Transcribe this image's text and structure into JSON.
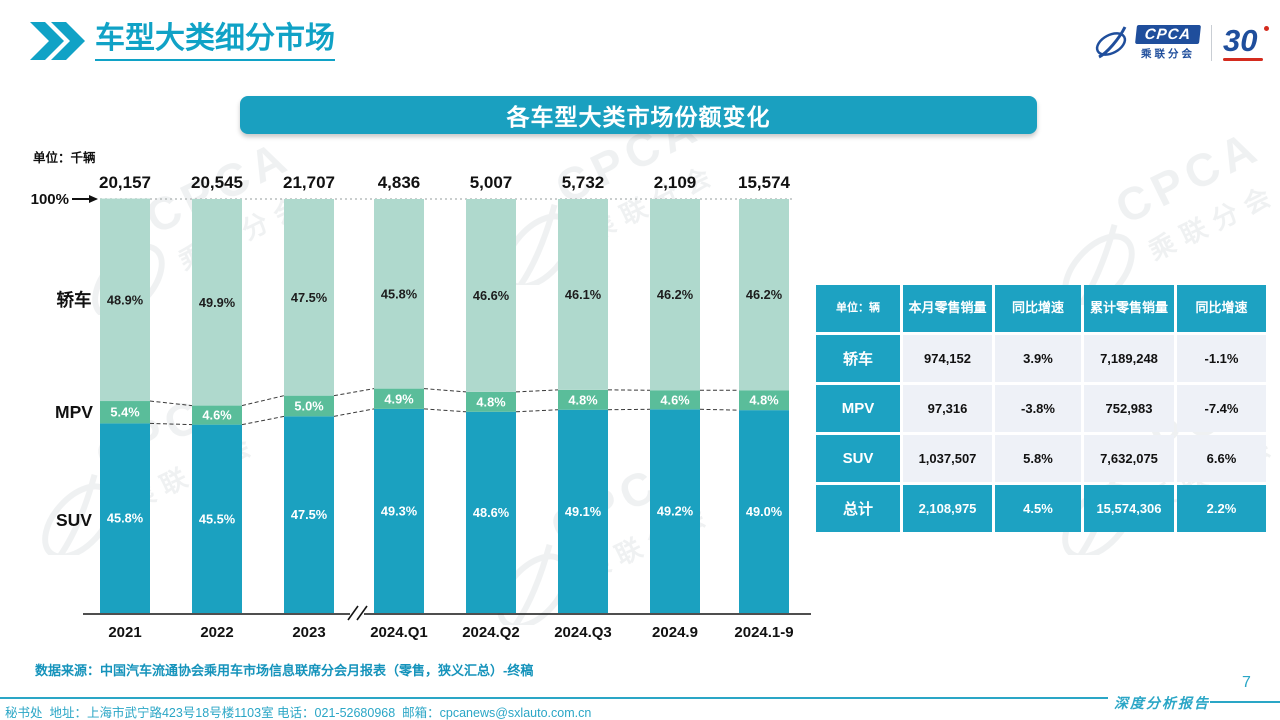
{
  "header": {
    "title": "车型大类细分市场"
  },
  "logo": {
    "name": "CPCA",
    "subtitle": "乘联分会",
    "anniversary": "30"
  },
  "banner": {
    "title": "各车型大类市场份额变化"
  },
  "chart_data": {
    "type": "bar",
    "stacked": true,
    "unit_label": "单位：千辆",
    "top_axis_label": "100%",
    "ylim": [
      0,
      100
    ],
    "grid": false,
    "legend_position": "left",
    "categories": [
      "2021",
      "2022",
      "2023",
      "2024.Q1",
      "2024.Q2",
      "2024.Q3",
      "2024.9",
      "2024.1-9"
    ],
    "totals": [
      "20,157",
      "20,545",
      "21,707",
      "4,836",
      "5,007",
      "5,732",
      "2,109",
      "15,574"
    ],
    "series": [
      {
        "name": "SUV",
        "color": "#1ba1c0",
        "label_color": "#ffffff",
        "values": [
          45.8,
          45.5,
          47.5,
          49.3,
          48.6,
          49.1,
          49.2,
          49.0
        ]
      },
      {
        "name": "MPV",
        "color": "#5abd9a",
        "label_color": "#ffffff",
        "values": [
          5.4,
          4.6,
          5.0,
          4.9,
          4.8,
          4.8,
          4.6,
          4.8
        ]
      },
      {
        "name": "轿车",
        "color": "#afd9cd",
        "label_color": "#1d1d1d",
        "values": [
          48.9,
          49.9,
          47.5,
          45.8,
          46.6,
          46.1,
          46.2,
          46.2
        ]
      }
    ],
    "axis_break_between": [
      "2023",
      "2024.Q1"
    ]
  },
  "table": {
    "headers": [
      "单位：辆",
      "本月零售销量",
      "同比增速",
      "累计零售销量",
      "同比增速"
    ],
    "rows": [
      {
        "label": "轿车",
        "values": [
          "974,152",
          "3.9%",
          "7,189,248",
          "-1.1%"
        ],
        "highlight": false
      },
      {
        "label": "MPV",
        "values": [
          "97,316",
          "-3.8%",
          "752,983",
          "-7.4%"
        ],
        "highlight": false
      },
      {
        "label": "SUV",
        "values": [
          "1,037,507",
          "5.8%",
          "7,632,075",
          "6.6%"
        ],
        "highlight": false
      },
      {
        "label": "总计",
        "values": [
          "2,108,975",
          "4.5%",
          "15,574,306",
          "2.2%"
        ],
        "highlight": true
      }
    ]
  },
  "footer": {
    "source_note": "数据来源：中国汽车流通协会乘用车市场信息联席分会月报表（零售，狭义汇总）-终稿",
    "report_label": "深度分析报告",
    "page_number": "7",
    "contact": "秘书处  地址：上海市武宁路423号18号楼1103室 电话：021-52680968  邮箱：cpcanews@sxlauto.com.cn"
  },
  "watermark": {
    "line1": "CPCA",
    "line2": "乘联分会"
  },
  "colors": {
    "teal": "#1ba1c0",
    "mint": "#afd9cd",
    "green": "#5abd9a",
    "accent": "#10a2c6",
    "logo_blue": "#1f4e9c",
    "logo_red": "#d42b1e"
  }
}
